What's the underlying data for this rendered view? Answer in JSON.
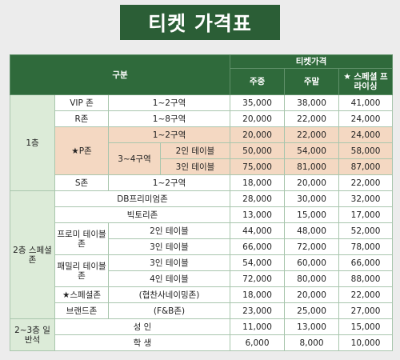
{
  "title": "티켓 가격표",
  "table": {
    "header": {
      "category": "구분",
      "price_group": "티켓가격",
      "columns": [
        "주중",
        "주말",
        "★ 스페셜 프라이싱"
      ]
    },
    "rows": [
      [
        "1층",
        "VIP 존",
        "1~2구역",
        "35,000",
        "38,000",
        "41,000"
      ],
      [
        "R존",
        "1~8구역",
        "20,000",
        "22,000",
        "24,000"
      ],
      [
        "★P존",
        "1~2구역",
        "20,000",
        "22,000",
        "24,000"
      ],
      [
        "3~4구역",
        "2인 테이블",
        "50,000",
        "54,000",
        "58,000"
      ],
      [
        "3인 테이블",
        "75,000",
        "81,000",
        "87,000"
      ],
      [
        "S존",
        "1~2구역",
        "18,000",
        "20,000",
        "22,000"
      ],
      [
        "2층 스페셜존",
        "DB프리미엄존",
        "28,000",
        "30,000",
        "32,000"
      ],
      [
        "빅토리존",
        "13,000",
        "15,000",
        "17,000"
      ],
      [
        "프로미 테이블존",
        "2인 테이블",
        "44,000",
        "48,000",
        "52,000"
      ],
      [
        "3인 테이블",
        "66,000",
        "72,000",
        "78,000"
      ],
      [
        "패밀리 테이블존",
        "3인 테이블",
        "54,000",
        "60,000",
        "66,000"
      ],
      [
        "4인 테이블",
        "72,000",
        "80,000",
        "88,000"
      ],
      [
        "★스페셜존",
        "(협찬사네이밍존)",
        "18,000",
        "20,000",
        "22,000"
      ],
      [
        "브랜드존",
        "(F&B존)",
        "23,000",
        "25,000",
        "27,000"
      ],
      [
        "2~3층 일반석",
        "성 인",
        "11,000",
        "13,000",
        "15,000"
      ],
      [
        "학 생",
        "6,000",
        "8,000",
        "10,000"
      ]
    ]
  }
}
